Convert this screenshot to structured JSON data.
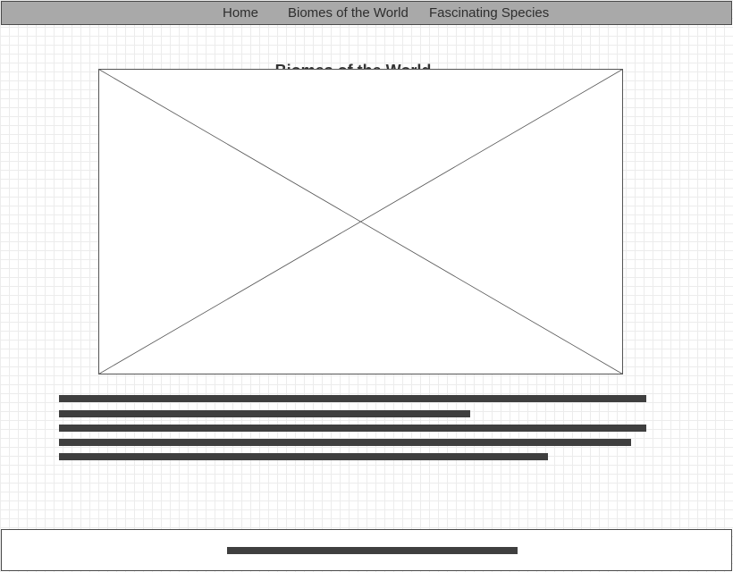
{
  "nav": {
    "items": [
      {
        "label": "Home"
      },
      {
        "label": "Biomes of the World"
      },
      {
        "label": "Fascinating Species"
      }
    ]
  },
  "main": {
    "title": "Biomes of the World",
    "image_placeholder_icon": "image-placeholder-x"
  },
  "colors": {
    "nav_background": "#a9a9a9",
    "text_placeholder": "#3f3f3f",
    "grid_line": "#ececec",
    "border": "#4a4a4a"
  }
}
